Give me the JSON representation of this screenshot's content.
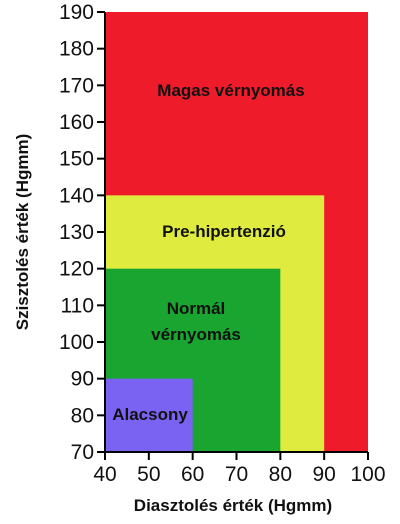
{
  "chart_data": {
    "type": "area",
    "title": "",
    "xlabel": "Diasztolés érték (Hgmm)",
    "ylabel": "Szisztolés érték (Hgmm)",
    "xlim": [
      40,
      100
    ],
    "ylim": [
      70,
      190
    ],
    "x_ticks": [
      40,
      50,
      60,
      70,
      80,
      90,
      100
    ],
    "y_ticks": [
      70,
      80,
      90,
      100,
      110,
      120,
      130,
      140,
      150,
      160,
      170,
      180,
      190
    ],
    "grid": false,
    "regions": [
      {
        "label": "Magas vérnyomás",
        "label_lines": [
          "Magas vérnyomás"
        ],
        "x": [
          40,
          100
        ],
        "y": [
          70,
          190
        ],
        "color": "#ee1c2a"
      },
      {
        "label": "Pre-hipertenzió",
        "label_lines": [
          "Pre-hipertenzió"
        ],
        "x": [
          40,
          90
        ],
        "y": [
          70,
          140
        ],
        "color": "#dfec3f"
      },
      {
        "label": "Normál vérnyomás",
        "label_lines": [
          "Normál",
          "vérnyomás"
        ],
        "x": [
          40,
          80
        ],
        "y": [
          70,
          120
        ],
        "color": "#1aa531"
      },
      {
        "label": "Alacsony",
        "label_lines": [
          "Alacsony"
        ],
        "x": [
          40,
          60
        ],
        "y": [
          70,
          90
        ],
        "color": "#7a63f2"
      }
    ]
  }
}
